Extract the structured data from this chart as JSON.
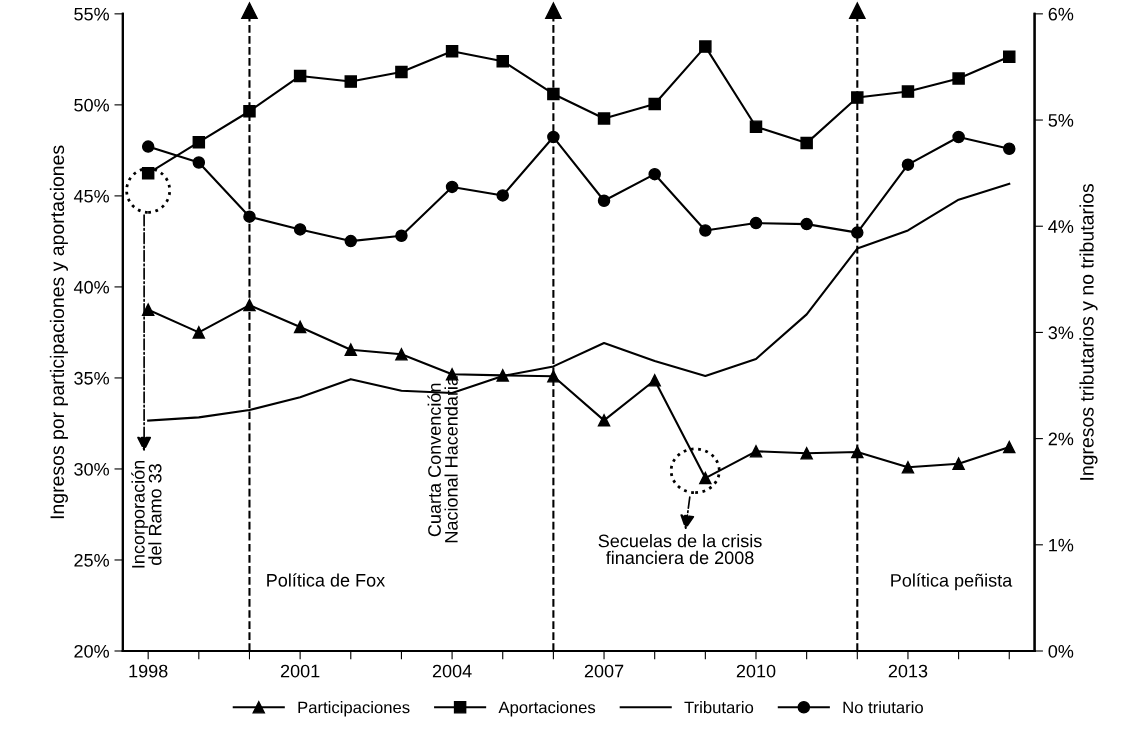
{
  "chart_data": {
    "type": "line",
    "ylabel": "Ingresos por participaciones y aportaciones",
    "y2label": "Ingresos tributarios y no tributarios",
    "x": [
      1998,
      1999,
      2000,
      2001,
      2002,
      2003,
      2004,
      2005,
      2006,
      2007,
      2008,
      2009,
      2010,
      2011,
      2012,
      2013,
      2014,
      2015
    ],
    "xlim": [
      1997.5,
      2015.5
    ],
    "xticks": [
      1998,
      {
        "value": 1999,
        "label": null
      },
      {
        "value": 2000,
        "label": null
      },
      2001,
      {
        "value": 2002,
        "label": null
      },
      {
        "value": 2003,
        "label": null
      },
      2004,
      {
        "value": 2005,
        "label": null
      },
      {
        "value": 2006,
        "label": null
      },
      2007,
      {
        "value": 2008,
        "label": null
      },
      {
        "value": 2009,
        "label": null
      },
      2010,
      {
        "value": 2011,
        "label": null
      },
      {
        "value": 2012,
        "label": null
      },
      2013,
      {
        "value": 2014,
        "label": null
      },
      {
        "value": 2015,
        "label": null
      }
    ],
    "series": [
      {
        "name": "Participaciones",
        "color": "#000000",
        "marker": "triangle",
        "values": [
          38.75,
          37.5,
          39.0,
          37.8,
          36.55,
          36.3,
          35.2,
          35.14,
          35.09,
          32.67,
          34.87,
          29.5,
          30.97,
          30.86,
          30.93,
          30.09,
          30.29,
          31.2
        ]
      },
      {
        "name": "Aportaciones",
        "color": "#000000",
        "marker": "square",
        "values": [
          46.24,
          47.95,
          49.65,
          51.59,
          51.28,
          51.81,
          52.95,
          52.4,
          50.6,
          49.25,
          50.05,
          53.2,
          48.8,
          47.9,
          50.4,
          50.73,
          51.45,
          52.65
        ]
      },
      {
        "name": "Tributario",
        "color": "#000000",
        "marker": "none",
        "axis": "y2",
        "values": [
          2.17,
          2.2,
          2.27,
          2.39,
          2.56,
          2.45,
          2.43,
          2.59,
          2.68,
          2.9,
          2.73,
          2.59,
          2.75,
          3.17,
          3.79,
          3.96,
          4.25,
          4.4
        ]
      },
      {
        "name": "No triutario",
        "color": "#000000",
        "marker": "circle",
        "axis": "y2",
        "values": [
          4.75,
          4.6,
          4.09,
          3.97,
          3.86,
          3.91,
          4.37,
          4.29,
          4.84,
          4.24,
          4.49,
          3.96,
          4.03,
          4.02,
          3.94,
          4.58,
          4.84,
          4.73
        ]
      }
    ],
    "ylim": [
      20,
      55
    ],
    "yticks": [
      {
        "value": 20,
        "label": "20%"
      },
      {
        "value": 25,
        "label": "25%"
      },
      {
        "value": 30,
        "label": "30%"
      },
      {
        "value": 35,
        "label": "35%"
      },
      {
        "value": 40,
        "label": "40%"
      },
      {
        "value": 45,
        "label": "45%"
      },
      {
        "value": 50,
        "label": "50%"
      },
      {
        "value": 55,
        "label": "55%"
      }
    ],
    "y2lim": [
      0,
      6
    ],
    "y2ticks": [
      {
        "value": 0,
        "label": "0%"
      },
      {
        "value": 1,
        "label": "1%"
      },
      {
        "value": 2,
        "label": "2%"
      },
      {
        "value": 3,
        "label": "3%"
      },
      {
        "value": 4,
        "label": "4%"
      },
      {
        "value": 5,
        "label": "5%"
      },
      {
        "value": 6,
        "label": "6%"
      }
    ],
    "ref_lines": [
      {
        "axis": "x",
        "value": 2000,
        "line_style": "dashed",
        "color": "#000000"
      },
      {
        "axis": "x",
        "value": 2006,
        "line_style": "dashed",
        "color": "#000000"
      },
      {
        "axis": "x",
        "value": 2012,
        "line_style": "dashed",
        "color": "#000000"
      }
    ],
    "annotations": [
      "Incorporación\ndel Ramo 33",
      "Política de Fox",
      "Cuarta Convención\nNacional Hacendaria",
      "Secuelas de la crisis\nfinanciera de 2008",
      "Política peñista"
    ],
    "grid": false,
    "legend": "bottom",
    "line_style": "solid"
  }
}
